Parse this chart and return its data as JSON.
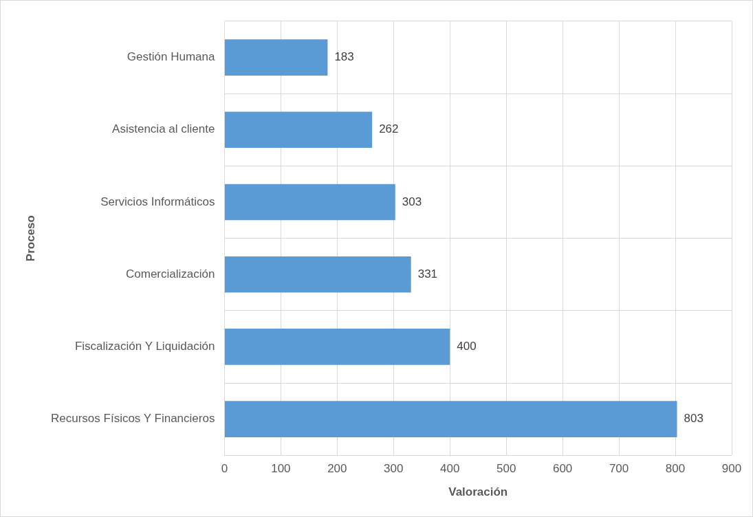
{
  "chart_data": {
    "type": "bar",
    "orientation": "horizontal",
    "xlabel": "Valoración",
    "ylabel": "Proceso",
    "categories": [
      "Gestión Humana",
      "Asistencia al cliente",
      "Servicios Informáticos",
      "Comercialización",
      "Fiscalización Y Liquidación",
      "Recursos Físicos Y Financieros"
    ],
    "values": [
      183,
      262,
      303,
      331,
      400,
      803
    ],
    "color": "#5b9bd5",
    "xlim": [
      0,
      900
    ],
    "xticks": [
      0,
      100,
      200,
      300,
      400,
      500,
      600,
      700,
      800,
      900
    ],
    "grid": true,
    "data_labels": true,
    "legend": false
  }
}
